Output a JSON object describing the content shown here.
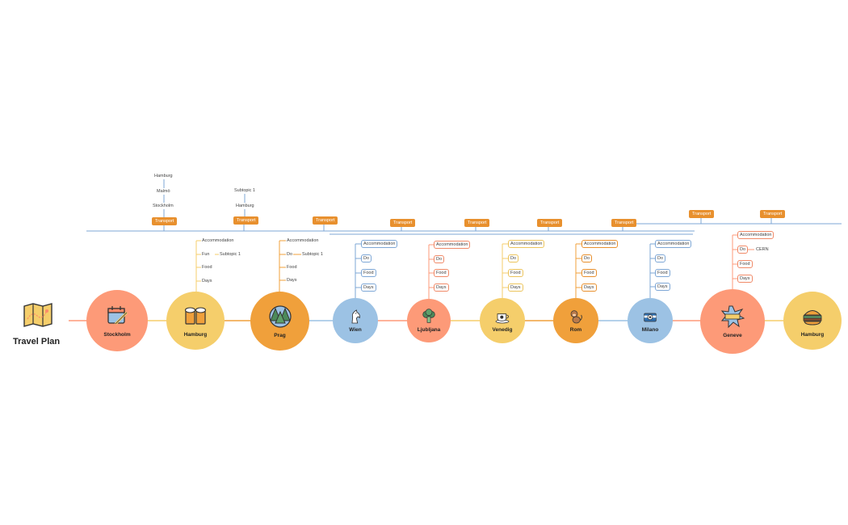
{
  "title": "Travel Plan",
  "colors": {
    "red": "#fd9a78",
    "yellow": "#f5ce6b",
    "orange": "#f0a03b",
    "blue": "#9cc2e4",
    "tag": "#e8902e",
    "line_blue": "#7ea7d6"
  },
  "cities": [
    {
      "name": "Stockholm",
      "icon": "calendar-icon"
    },
    {
      "name": "Hamburg",
      "icon": "beer-icon"
    },
    {
      "name": "Prag",
      "icon": "forest-icon"
    },
    {
      "name": "Wien",
      "icon": "horse-icon"
    },
    {
      "name": "Ljubljana",
      "icon": "broccoli-icon"
    },
    {
      "name": "Venedig",
      "icon": "coffee-icon"
    },
    {
      "name": "Rom",
      "icon": "monkey-icon"
    },
    {
      "name": "Milano",
      "icon": "camera-icon"
    },
    {
      "name": "Geneve",
      "icon": "wow-icon"
    },
    {
      "name": "Hamburg",
      "icon": "burger-icon"
    }
  ],
  "transport": "Transport",
  "stockholm_route": [
    "Hamburg",
    "Malmö",
    "Stockholm"
  ],
  "hamburg_route": [
    "Subtopic 1",
    "Hamburg"
  ],
  "topics": {
    "accommodation": "Accommodation",
    "fun": "Fun",
    "do": "Do",
    "food": "Food",
    "days": "Days",
    "subtopic": "Subtopic 1",
    "cern": "CERN"
  }
}
